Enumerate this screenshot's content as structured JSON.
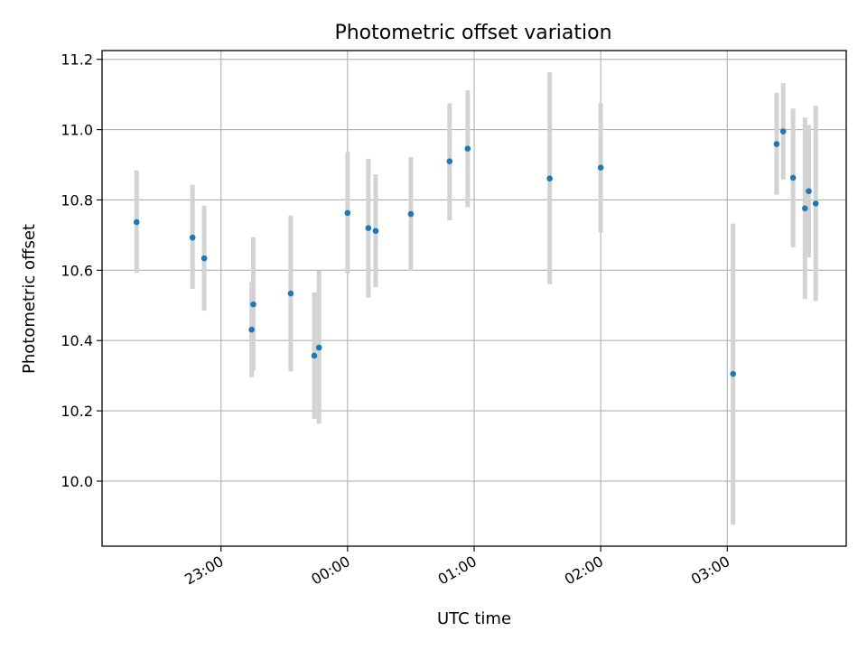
{
  "chart_data": {
    "type": "scatter",
    "title": "Photometric offset variation",
    "xlabel": "UTC time",
    "ylabel": "Photometric offset",
    "x_unit": "hours (UTC, relative to 00:00; negative = previous day)",
    "xlim": [
      -1.94,
      3.94
    ],
    "ylim": [
      9.815,
      11.225
    ],
    "x_ticks": [
      {
        "value": -1,
        "label": "23:00"
      },
      {
        "value": 0,
        "label": "00:00"
      },
      {
        "value": 1,
        "label": "01:00"
      },
      {
        "value": 2,
        "label": "02:00"
      },
      {
        "value": 3,
        "label": "03:00"
      }
    ],
    "y_ticks": [
      {
        "value": 10.0,
        "label": "10.0"
      },
      {
        "value": 10.2,
        "label": "10.2"
      },
      {
        "value": 10.4,
        "label": "10.4"
      },
      {
        "value": 10.6,
        "label": "10.6"
      },
      {
        "value": 10.8,
        "label": "10.8"
      },
      {
        "value": 11.0,
        "label": "11.0"
      },
      {
        "value": 11.2,
        "label": "11.2"
      }
    ],
    "grid": true,
    "colors": {
      "point": "#1f77b4",
      "errorbar": "#d3d3d3",
      "grid": "#b0b0b0",
      "axes": "#000000"
    },
    "points": [
      {
        "x": -1.667,
        "y": 10.737,
        "err_low": 10.593,
        "err_high": 10.884
      },
      {
        "x": -1.225,
        "y": 10.693,
        "err_low": 10.547,
        "err_high": 10.843
      },
      {
        "x": -1.133,
        "y": 10.634,
        "err_low": 10.485,
        "err_high": 10.784
      },
      {
        "x": -0.758,
        "y": 10.431,
        "err_low": 10.296,
        "err_high": 10.566
      },
      {
        "x": -0.745,
        "y": 10.503,
        "err_low": 10.315,
        "err_high": 10.694
      },
      {
        "x": -0.449,
        "y": 10.534,
        "err_low": 10.312,
        "err_high": 10.756
      },
      {
        "x": -0.263,
        "y": 10.357,
        "err_low": 10.177,
        "err_high": 10.537
      },
      {
        "x": -0.226,
        "y": 10.38,
        "err_low": 10.164,
        "err_high": 10.598
      },
      {
        "x": 0.0,
        "y": 10.763,
        "err_low": 10.591,
        "err_high": 10.936
      },
      {
        "x": 0.164,
        "y": 10.72,
        "err_low": 10.522,
        "err_high": 10.917
      },
      {
        "x": 0.222,
        "y": 10.712,
        "err_low": 10.552,
        "err_high": 10.873
      },
      {
        "x": 0.5,
        "y": 10.76,
        "err_low": 10.598,
        "err_high": 10.922
      },
      {
        "x": 0.806,
        "y": 10.91,
        "err_low": 10.742,
        "err_high": 11.075
      },
      {
        "x": 0.949,
        "y": 10.946,
        "err_low": 10.779,
        "err_high": 11.112
      },
      {
        "x": 1.597,
        "y": 10.861,
        "err_low": 10.56,
        "err_high": 11.163
      },
      {
        "x": 2.0,
        "y": 10.892,
        "err_low": 10.707,
        "err_high": 11.076
      },
      {
        "x": 3.046,
        "y": 10.305,
        "err_low": 9.876,
        "err_high": 10.733
      },
      {
        "x": 3.39,
        "y": 10.959,
        "err_low": 10.815,
        "err_high": 11.105
      },
      {
        "x": 3.442,
        "y": 10.995,
        "err_low": 10.858,
        "err_high": 11.132
      },
      {
        "x": 3.52,
        "y": 10.863,
        "err_low": 10.665,
        "err_high": 11.06
      },
      {
        "x": 3.614,
        "y": 10.776,
        "err_low": 10.518,
        "err_high": 11.034
      },
      {
        "x": 3.644,
        "y": 10.825,
        "err_low": 10.637,
        "err_high": 11.013
      },
      {
        "x": 3.699,
        "y": 10.79,
        "err_low": 10.512,
        "err_high": 11.068
      }
    ]
  }
}
